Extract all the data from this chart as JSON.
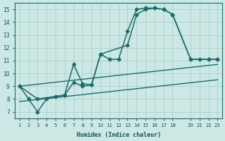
{
  "xlabel": "Humidex (Indice chaleur)",
  "background_color": "#cce8e4",
  "grid_color": "#aacfcb",
  "line_color": "#1a6b6b",
  "xticks": [
    1,
    2,
    3,
    4,
    5,
    6,
    7,
    8,
    9,
    10,
    11,
    12,
    13,
    14,
    15,
    16,
    17,
    18,
    20,
    21,
    22,
    23
  ],
  "yticks": [
    7,
    8,
    9,
    10,
    11,
    12,
    13,
    14,
    15
  ],
  "xlim": [
    0.5,
    23.5
  ],
  "ylim": [
    6.5,
    15.5
  ],
  "line1": {
    "x": [
      1,
      2,
      3,
      4,
      5,
      6,
      7,
      8,
      9,
      10,
      11,
      12,
      13,
      14,
      15,
      16,
      17,
      18,
      20,
      21,
      22,
      23
    ],
    "y": [
      9.0,
      8.0,
      7.0,
      8.0,
      8.2,
      8.3,
      9.3,
      9.0,
      9.1,
      11.5,
      11.1,
      11.1,
      13.3,
      15.0,
      15.1,
      15.1,
      15.0,
      14.6,
      11.1,
      11.1,
      11.1,
      11.1
    ]
  },
  "line2": {
    "x": [
      1,
      3,
      6,
      7,
      8,
      9,
      10,
      13,
      14,
      15,
      16,
      17,
      18,
      20,
      22,
      23
    ],
    "y": [
      9.0,
      8.0,
      8.3,
      10.7,
      9.2,
      9.1,
      11.5,
      12.2,
      14.6,
      15.0,
      15.1,
      15.0,
      14.6,
      11.1,
      11.1,
      11.1
    ]
  },
  "smooth_upper": {
    "x": [
      1,
      23
    ],
    "y": [
      9.0,
      10.7
    ]
  },
  "smooth_lower": {
    "x": [
      1,
      23
    ],
    "y": [
      7.8,
      9.5
    ]
  }
}
